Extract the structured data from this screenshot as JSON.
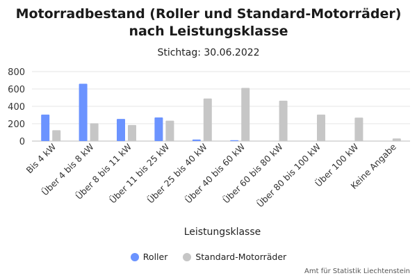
{
  "title_line1": "Motorradbestand (Roller und Standard-Motorräder)",
  "title_line2": "nach Leistungsklasse",
  "subtitle": "Stichtag: 30.06.2022",
  "credit": "Amt für Statistik Liechtenstein",
  "colors": {
    "roller": "#6b93ff",
    "standard": "#c6c6c6",
    "grid": "#e6e6e6"
  },
  "chart_data": {
    "type": "bar",
    "xlabel": "Leistungsklasse",
    "ylabel": "",
    "ylim": [
      0,
      800
    ],
    "yticks": [
      "0",
      "200",
      "400",
      "600",
      "800"
    ],
    "grid": true,
    "legend_position": "bottom",
    "categories": [
      "Bis 4 kW",
      "Über 4 bis 8 kW",
      "Über 8 bis 11 kW",
      "Über 11 bis 25 kW",
      "Über 25 bis 40 kW",
      "Über 40 bis 60 kW",
      "Über 60 bis 80 kW",
      "Über 80 bis 100 kW",
      "Über 100 kW",
      "Keine Angabe"
    ],
    "series": [
      {
        "name": "Roller",
        "values": [
          305,
          660,
          255,
          272,
          18,
          10,
          0,
          0,
          0,
          0
        ]
      },
      {
        "name": "Standard-Motorräder",
        "values": [
          125,
          205,
          185,
          235,
          490,
          612,
          465,
          305,
          270,
          30
        ]
      }
    ]
  }
}
